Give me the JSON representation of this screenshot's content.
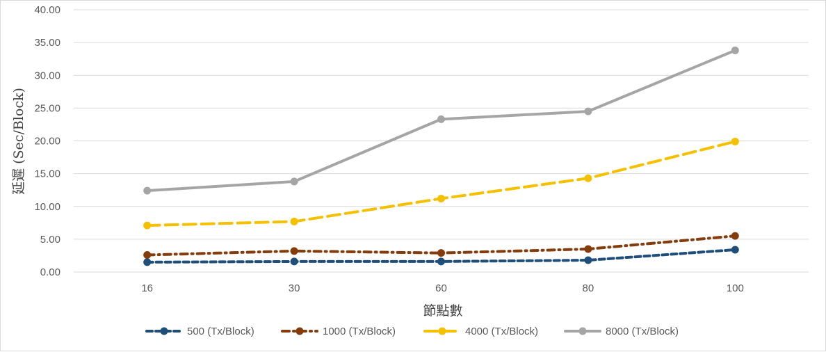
{
  "chart_data": {
    "type": "line",
    "title": "",
    "xlabel": "節點數",
    "ylabel": "延遲 (Sec/Block)",
    "categories": [
      "16",
      "30",
      "60",
      "80",
      "100"
    ],
    "ylim": [
      0,
      40
    ],
    "yticks": [
      "0.00",
      "5.00",
      "10.00",
      "15.00",
      "20.00",
      "25.00",
      "30.00",
      "35.00",
      "40.00"
    ],
    "grid": "horizontal",
    "legend_position": "bottom",
    "series": [
      {
        "name": "500 (Tx/Block)",
        "values": [
          1.5,
          1.6,
          1.6,
          1.8,
          3.4
        ],
        "color": "#1f4e79",
        "dash": "8,5"
      },
      {
        "name": "1000 (Tx/Block)",
        "values": [
          2.6,
          3.2,
          2.9,
          3.5,
          5.5
        ],
        "color": "#843c0c",
        "dash": "10,6,2,6"
      },
      {
        "name": "4000 (Tx/Block)",
        "values": [
          7.1,
          7.7,
          11.2,
          14.3,
          19.9
        ],
        "color": "#f5c000",
        "dash": "18,8"
      },
      {
        "name": "8000 (Tx/Block)",
        "values": [
          12.4,
          13.8,
          23.3,
          24.5,
          33.8
        ],
        "color": "#a5a5a5",
        "dash": ""
      }
    ]
  }
}
